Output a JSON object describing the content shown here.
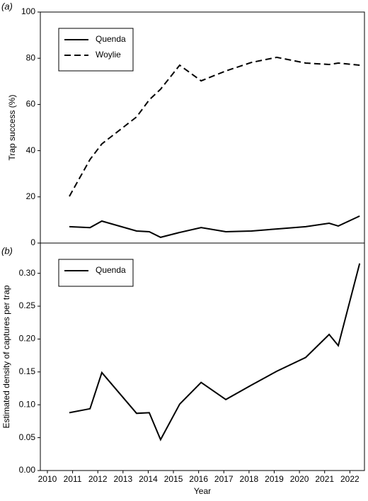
{
  "chart_data": [
    {
      "type": "line",
      "panel_label": "(a)",
      "ylabel": "Trap success (%)",
      "x": [
        2010.87,
        2011.69,
        2012.16,
        2013.54,
        2014.04,
        2014.49,
        2015.25,
        2016.1,
        2017.08,
        2018.1,
        2019.1,
        2020.25,
        2021.18,
        2021.54,
        2022.39
      ],
      "series": [
        {
          "name": "Quenda",
          "color": "#000000",
          "linestyle": "solid",
          "values": [
            7.1,
            6.7,
            9.5,
            5.2,
            4.9,
            2.5,
            4.6,
            6.7,
            4.9,
            5.2,
            6.1,
            7.1,
            8.6,
            7.4,
            11.7
          ]
        },
        {
          "name": "Woylie",
          "color": "#000000",
          "linestyle": "dashed",
          "values": [
            20.2,
            36.2,
            42.9,
            54.6,
            62.0,
            66.6,
            77.0,
            70.2,
            74.5,
            78.2,
            80.4,
            77.9,
            77.3,
            77.9,
            77.0
          ]
        }
      ],
      "xlim": [
        2009.72,
        2022.58
      ],
      "ylim": [
        0,
        100
      ],
      "yticks": [
        0,
        20,
        40,
        60,
        80,
        100
      ],
      "legend": "upper left"
    },
    {
      "type": "line",
      "panel_label": "(b)",
      "ylabel": "Estimated density of captures per trap",
      "xlabel": "Year",
      "x": [
        2010.87,
        2011.69,
        2012.16,
        2013.54,
        2014.04,
        2014.49,
        2015.25,
        2016.1,
        2017.08,
        2018.1,
        2019.1,
        2020.25,
        2021.18,
        2021.54,
        2022.39
      ],
      "series": [
        {
          "name": "Quenda",
          "color": "#000000",
          "linestyle": "solid",
          "values": [
            0.088,
            0.094,
            0.149,
            0.087,
            0.088,
            0.047,
            0.101,
            0.134,
            0.108,
            0.13,
            0.151,
            0.172,
            0.207,
            0.19,
            0.315
          ]
        }
      ],
      "xlim": [
        2009.72,
        2022.58
      ],
      "ylim": [
        0,
        0.346
      ],
      "xticks": [
        2010,
        2011,
        2012,
        2013,
        2014,
        2015,
        2016,
        2017,
        2018,
        2019,
        2020,
        2021,
        2022
      ],
      "yticks": [
        {
          "value": 0,
          "label": "0.00"
        },
        {
          "value": 0.05,
          "label": "0.05"
        },
        {
          "value": 0.1,
          "label": "0.10"
        },
        {
          "value": 0.15,
          "label": "0.15"
        },
        {
          "value": 0.2,
          "label": "0.20"
        },
        {
          "value": 0.25,
          "label": "0.25"
        },
        {
          "value": 0.3,
          "label": "0.30"
        }
      ],
      "legend": "upper left"
    }
  ]
}
